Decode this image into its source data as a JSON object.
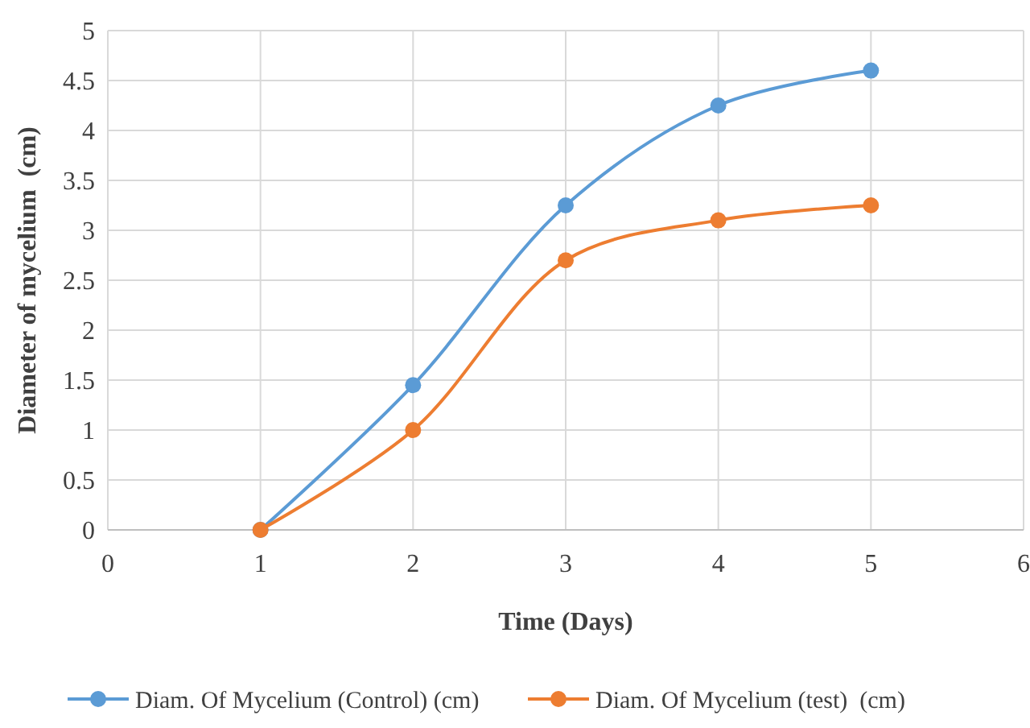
{
  "chart_data": {
    "type": "line",
    "xlabel": "Time (Days)",
    "ylabel": "Diameter of mycelium  (cm)",
    "x": [
      1,
      2,
      3,
      4,
      5
    ],
    "series": [
      {
        "name": "Diam. Of Mycelium (Control) (cm)",
        "color": "#5b9bd5",
        "values": [
          0,
          1.45,
          3.25,
          4.25,
          4.6
        ]
      },
      {
        "name": "Diam. Of Mycelium (test)  (cm)",
        "color": "#ed7d31",
        "values": [
          0,
          1.0,
          2.7,
          3.1,
          3.25
        ]
      }
    ],
    "xlim": [
      0,
      6
    ],
    "xticks": [
      0,
      1,
      2,
      3,
      4,
      5,
      6
    ],
    "ylim": [
      0,
      5
    ],
    "yticks": [
      0,
      0.5,
      1,
      1.5,
      2,
      2.5,
      3,
      3.5,
      4,
      4.5,
      5
    ],
    "grid": true,
    "legend": "bottom",
    "marker": "circle",
    "line_style": "solid"
  }
}
